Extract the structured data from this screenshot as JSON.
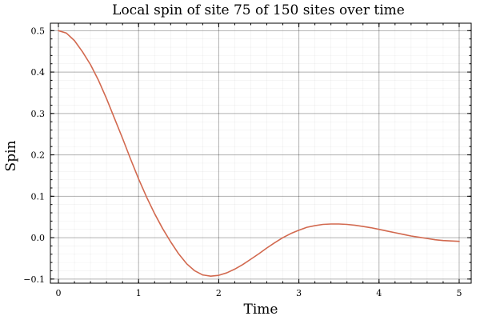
{
  "chart_data": {
    "type": "line",
    "title": "Local spin of site 75 of 150 sites over time",
    "xlabel": "Time",
    "ylabel": "Spin",
    "xlim": [
      -0.1,
      5.15
    ],
    "ylim": [
      -0.11,
      0.518
    ],
    "xticks": [
      0,
      1,
      2,
      3,
      4,
      5
    ],
    "xtick_labels": [
      "0",
      "1",
      "2",
      "3",
      "4",
      "5"
    ],
    "yticks": [
      -0.1,
      0.0,
      0.1,
      0.2,
      0.3,
      0.4,
      0.5
    ],
    "ytick_labels": [
      "−0.1",
      "0.0",
      "0.1",
      "0.2",
      "0.3",
      "0.4",
      "0.5"
    ],
    "grid": true,
    "minor_grid": true,
    "legend": "none",
    "series": [
      {
        "color": "#d2694f",
        "x": [
          0.0,
          0.1,
          0.2,
          0.3,
          0.4,
          0.5,
          0.6,
          0.7,
          0.8,
          0.9,
          1.0,
          1.1,
          1.2,
          1.3,
          1.4,
          1.5,
          1.6,
          1.7,
          1.8,
          1.9,
          2.0,
          2.1,
          2.2,
          2.3,
          2.4,
          2.5,
          2.6,
          2.7,
          2.8,
          2.9,
          3.0,
          3.1,
          3.2,
          3.3,
          3.4,
          3.5,
          3.6,
          3.7,
          3.8,
          3.9,
          4.0,
          4.1,
          4.2,
          4.3,
          4.4,
          4.5,
          4.6,
          4.7,
          4.8,
          4.9,
          5.0
        ],
        "y": [
          0.5,
          0.494,
          0.476,
          0.449,
          0.418,
          0.38,
          0.336,
          0.288,
          0.24,
          0.19,
          0.142,
          0.098,
          0.058,
          0.022,
          -0.01,
          -0.039,
          -0.063,
          -0.08,
          -0.09,
          -0.093,
          -0.091,
          -0.085,
          -0.076,
          -0.065,
          -0.052,
          -0.039,
          -0.025,
          -0.012,
          0.0,
          0.01,
          0.018,
          0.025,
          0.029,
          0.032,
          0.033,
          0.033,
          0.032,
          0.03,
          0.027,
          0.024,
          0.02,
          0.016,
          0.012,
          0.008,
          0.004,
          0.001,
          -0.002,
          -0.005,
          -0.007,
          -0.008,
          -0.009
        ]
      }
    ]
  }
}
